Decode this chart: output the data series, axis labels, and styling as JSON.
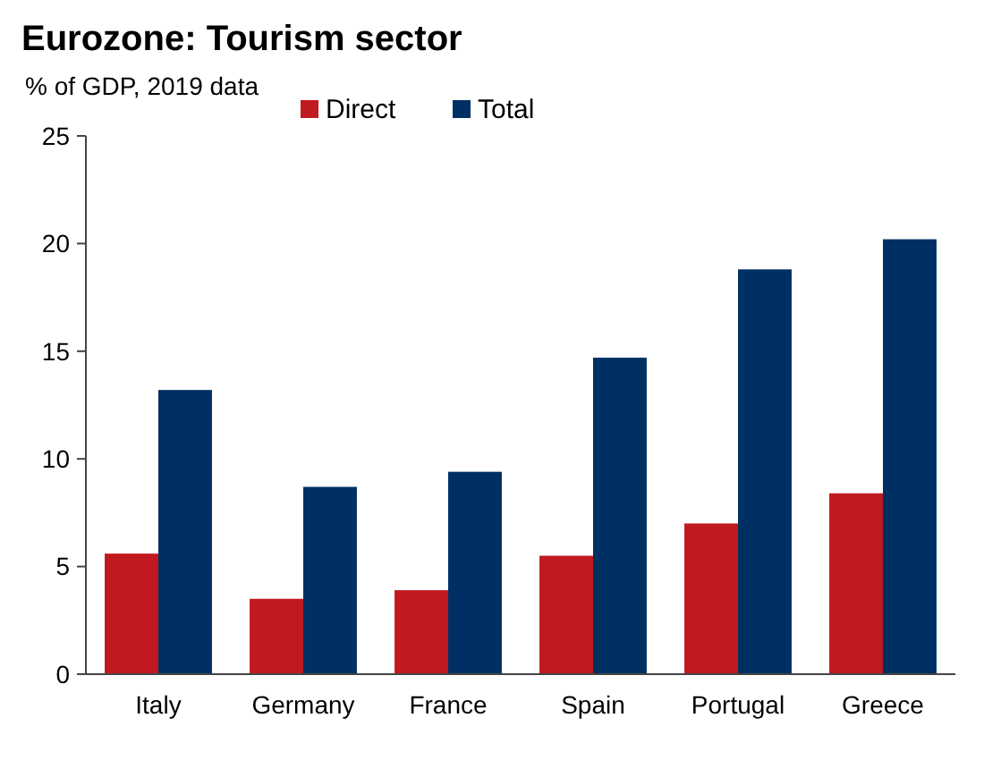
{
  "chart_data": {
    "type": "bar",
    "title": "Eurozone: Tourism sector",
    "subtitle": "% of GDP, 2019 data",
    "categories": [
      "Italy",
      "Germany",
      "France",
      "Spain",
      "Portugal",
      "Greece"
    ],
    "series": [
      {
        "name": "Direct",
        "color": "#c0191f",
        "values": [
          5.6,
          3.5,
          3.9,
          5.5,
          7.0,
          8.4
        ]
      },
      {
        "name": "Total",
        "color": "#003063",
        "values": [
          13.2,
          8.7,
          9.4,
          14.7,
          18.8,
          20.2
        ]
      }
    ],
    "ylim": [
      0,
      25
    ],
    "yticks": [
      0,
      5,
      10,
      15,
      20,
      25
    ],
    "grid": false,
    "legend": "top"
  }
}
